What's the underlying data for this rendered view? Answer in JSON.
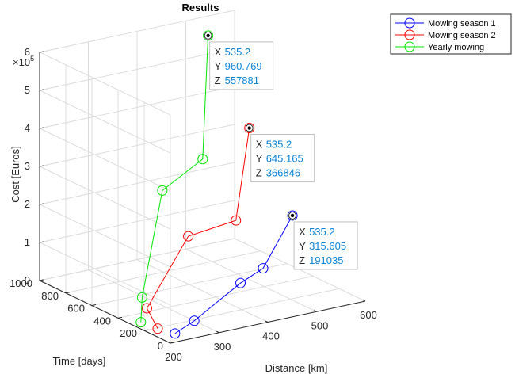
{
  "chart_data": {
    "type": "line3d",
    "title": "Results",
    "xlabel": "Distance [km]",
    "ylabel": "Time [days]",
    "zlabel": "Cost [Euros]",
    "z_exponent_label": "×10",
    "z_exponent_power": "5",
    "xlim": [
      200,
      600
    ],
    "ylim": [
      0,
      1000
    ],
    "zlim": [
      0,
      6
    ],
    "x_ticks": [
      "200",
      "300",
      "400",
      "500",
      "600"
    ],
    "y_ticks": [
      "0",
      "200",
      "400",
      "600",
      "800",
      "1000"
    ],
    "z_ticks": [
      "0",
      "1",
      "2",
      "3",
      "4",
      "5",
      "6"
    ],
    "grid": true,
    "legend_position": "top-right",
    "series": [
      {
        "name": "Mowing season 1",
        "color": "#0000FF",
        "points": [
          {
            "x": 235,
            "y": 95,
            "z": 0
          },
          {
            "x": 300,
            "y": 190,
            "z": 0
          },
          {
            "x": 415,
            "y": 265,
            "z": 0.55
          },
          {
            "x": 460,
            "y": 260,
            "z": 0.82
          },
          {
            "x": 535.2,
            "y": 315.605,
            "z": 1.91035
          }
        ]
      },
      {
        "name": "Mowing season 2",
        "color": "#FF0000",
        "points": [
          {
            "x": 225,
            "y": 190,
            "z": 0
          },
          {
            "x": 270,
            "y": 440,
            "z": 0
          },
          {
            "x": 395,
            "y": 590,
            "z": 1.3
          },
          {
            "x": 470,
            "y": 505,
            "z": 1.65
          },
          {
            "x": 535.2,
            "y": 645.165,
            "z": 3.66846
          }
        ]
      },
      {
        "name": "Yearly mowing",
        "color": "#00E600",
        "points": [
          {
            "x": 220,
            "y": 300,
            "z": 0
          },
          {
            "x": 295,
            "y": 570,
            "z": 0
          },
          {
            "x": 370,
            "y": 695,
            "z": 2.4
          },
          {
            "x": 430,
            "y": 610,
            "z": 3.2
          },
          {
            "x": 535.2,
            "y": 960.769,
            "z": 5.57881
          }
        ]
      }
    ],
    "datatips": [
      {
        "series": 2,
        "x": "535.2",
        "y": "960.769",
        "z": "557881"
      },
      {
        "series": 1,
        "x": "535.2",
        "y": "645.165",
        "z": "366846"
      },
      {
        "series": 0,
        "x": "535.2",
        "y": "315.605",
        "z": "191035"
      }
    ],
    "datatip_keys": {
      "x": "X",
      "y": "Y",
      "z": "Z"
    }
  }
}
